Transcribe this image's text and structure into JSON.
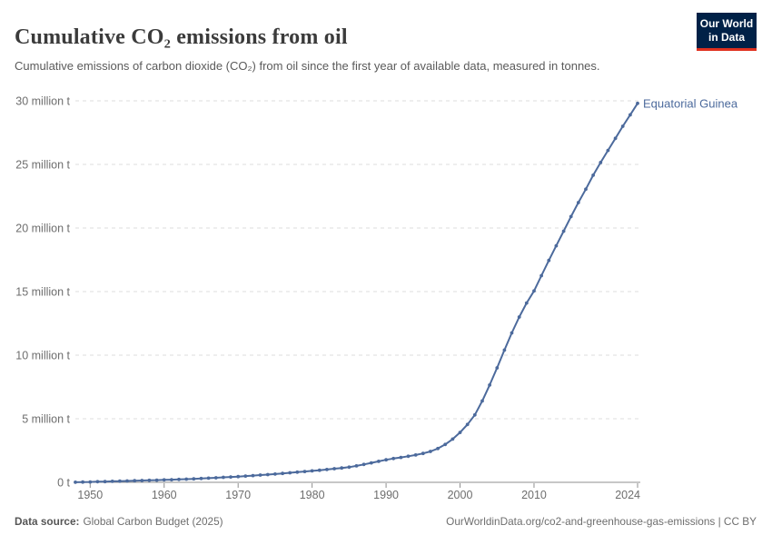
{
  "header": {
    "title": "Cumulative CO₂ emissions from oil",
    "subtitle": "Cumulative emissions of carbon dioxide (CO₂) from oil since the first year of available data, measured in tonnes.",
    "logo": {
      "line1": "Our World",
      "line2": "in Data"
    }
  },
  "footer": {
    "datasource_label": "Data source:",
    "datasource_value": "Global Carbon Budget (2025)",
    "citation": "OurWorldinData.org/co2-and-greenhouse-gas-emissions | CC BY"
  },
  "colors": {
    "series_blue": "#4C6A9C",
    "logo_navy": "#002147",
    "logo_red": "#e0301e",
    "gridline": "#dcdcdc",
    "axis": "#8f8f8f",
    "tick_label": "#6e6e6e"
  },
  "chart_data": {
    "type": "line",
    "title": "Cumulative CO₂ emissions from oil",
    "entity": "Equatorial Guinea",
    "unit": "tonnes",
    "color": "#4C6A9C",
    "grid": true,
    "legend_position": "end-of-line-label",
    "xlim": [
      1948,
      2024
    ],
    "ylim": [
      0,
      30
    ],
    "xticks": [
      1950,
      1960,
      1970,
      1980,
      1990,
      2000,
      2010,
      2024
    ],
    "ytick_values": [
      0,
      5,
      10,
      15,
      20,
      25,
      30
    ],
    "ytick_labels": [
      "0 t",
      "5 million t",
      "10 million t",
      "15 million t",
      "20 million t",
      "25 million t",
      "30 million t"
    ],
    "x": [
      1948,
      1949,
      1950,
      1951,
      1952,
      1953,
      1954,
      1955,
      1956,
      1957,
      1958,
      1959,
      1960,
      1961,
      1962,
      1963,
      1964,
      1965,
      1966,
      1967,
      1968,
      1969,
      1970,
      1971,
      1972,
      1973,
      1974,
      1975,
      1976,
      1977,
      1978,
      1979,
      1980,
      1981,
      1982,
      1983,
      1984,
      1985,
      1986,
      1987,
      1988,
      1989,
      1990,
      1991,
      1992,
      1993,
      1994,
      1995,
      1996,
      1997,
      1998,
      1999,
      2000,
      2001,
      2002,
      2003,
      2004,
      2005,
      2006,
      2007,
      2008,
      2009,
      2010,
      2011,
      2012,
      2013,
      2014,
      2015,
      2016,
      2017,
      2018,
      2019,
      2020,
      2021,
      2022,
      2023,
      2024
    ],
    "values_million_t": [
      0.01,
      0.02,
      0.03,
      0.05,
      0.06,
      0.08,
      0.09,
      0.11,
      0.13,
      0.14,
      0.16,
      0.17,
      0.19,
      0.21,
      0.23,
      0.25,
      0.27,
      0.3,
      0.33,
      0.36,
      0.39,
      0.42,
      0.45,
      0.49,
      0.53,
      0.57,
      0.61,
      0.65,
      0.7,
      0.75,
      0.8,
      0.85,
      0.9,
      0.95,
      1.01,
      1.07,
      1.13,
      1.19,
      1.29,
      1.41,
      1.53,
      1.65,
      1.77,
      1.87,
      1.96,
      2.05,
      2.15,
      2.27,
      2.43,
      2.66,
      2.98,
      3.4,
      3.92,
      4.55,
      5.3,
      6.4,
      7.65,
      9.0,
      10.4,
      11.75,
      13.0,
      14.1,
      15.05,
      16.25,
      17.45,
      18.6,
      19.75,
      20.9,
      22.0,
      23.05,
      24.15,
      25.15,
      26.1,
      27.05,
      28.0,
      28.9,
      29.8
    ]
  }
}
